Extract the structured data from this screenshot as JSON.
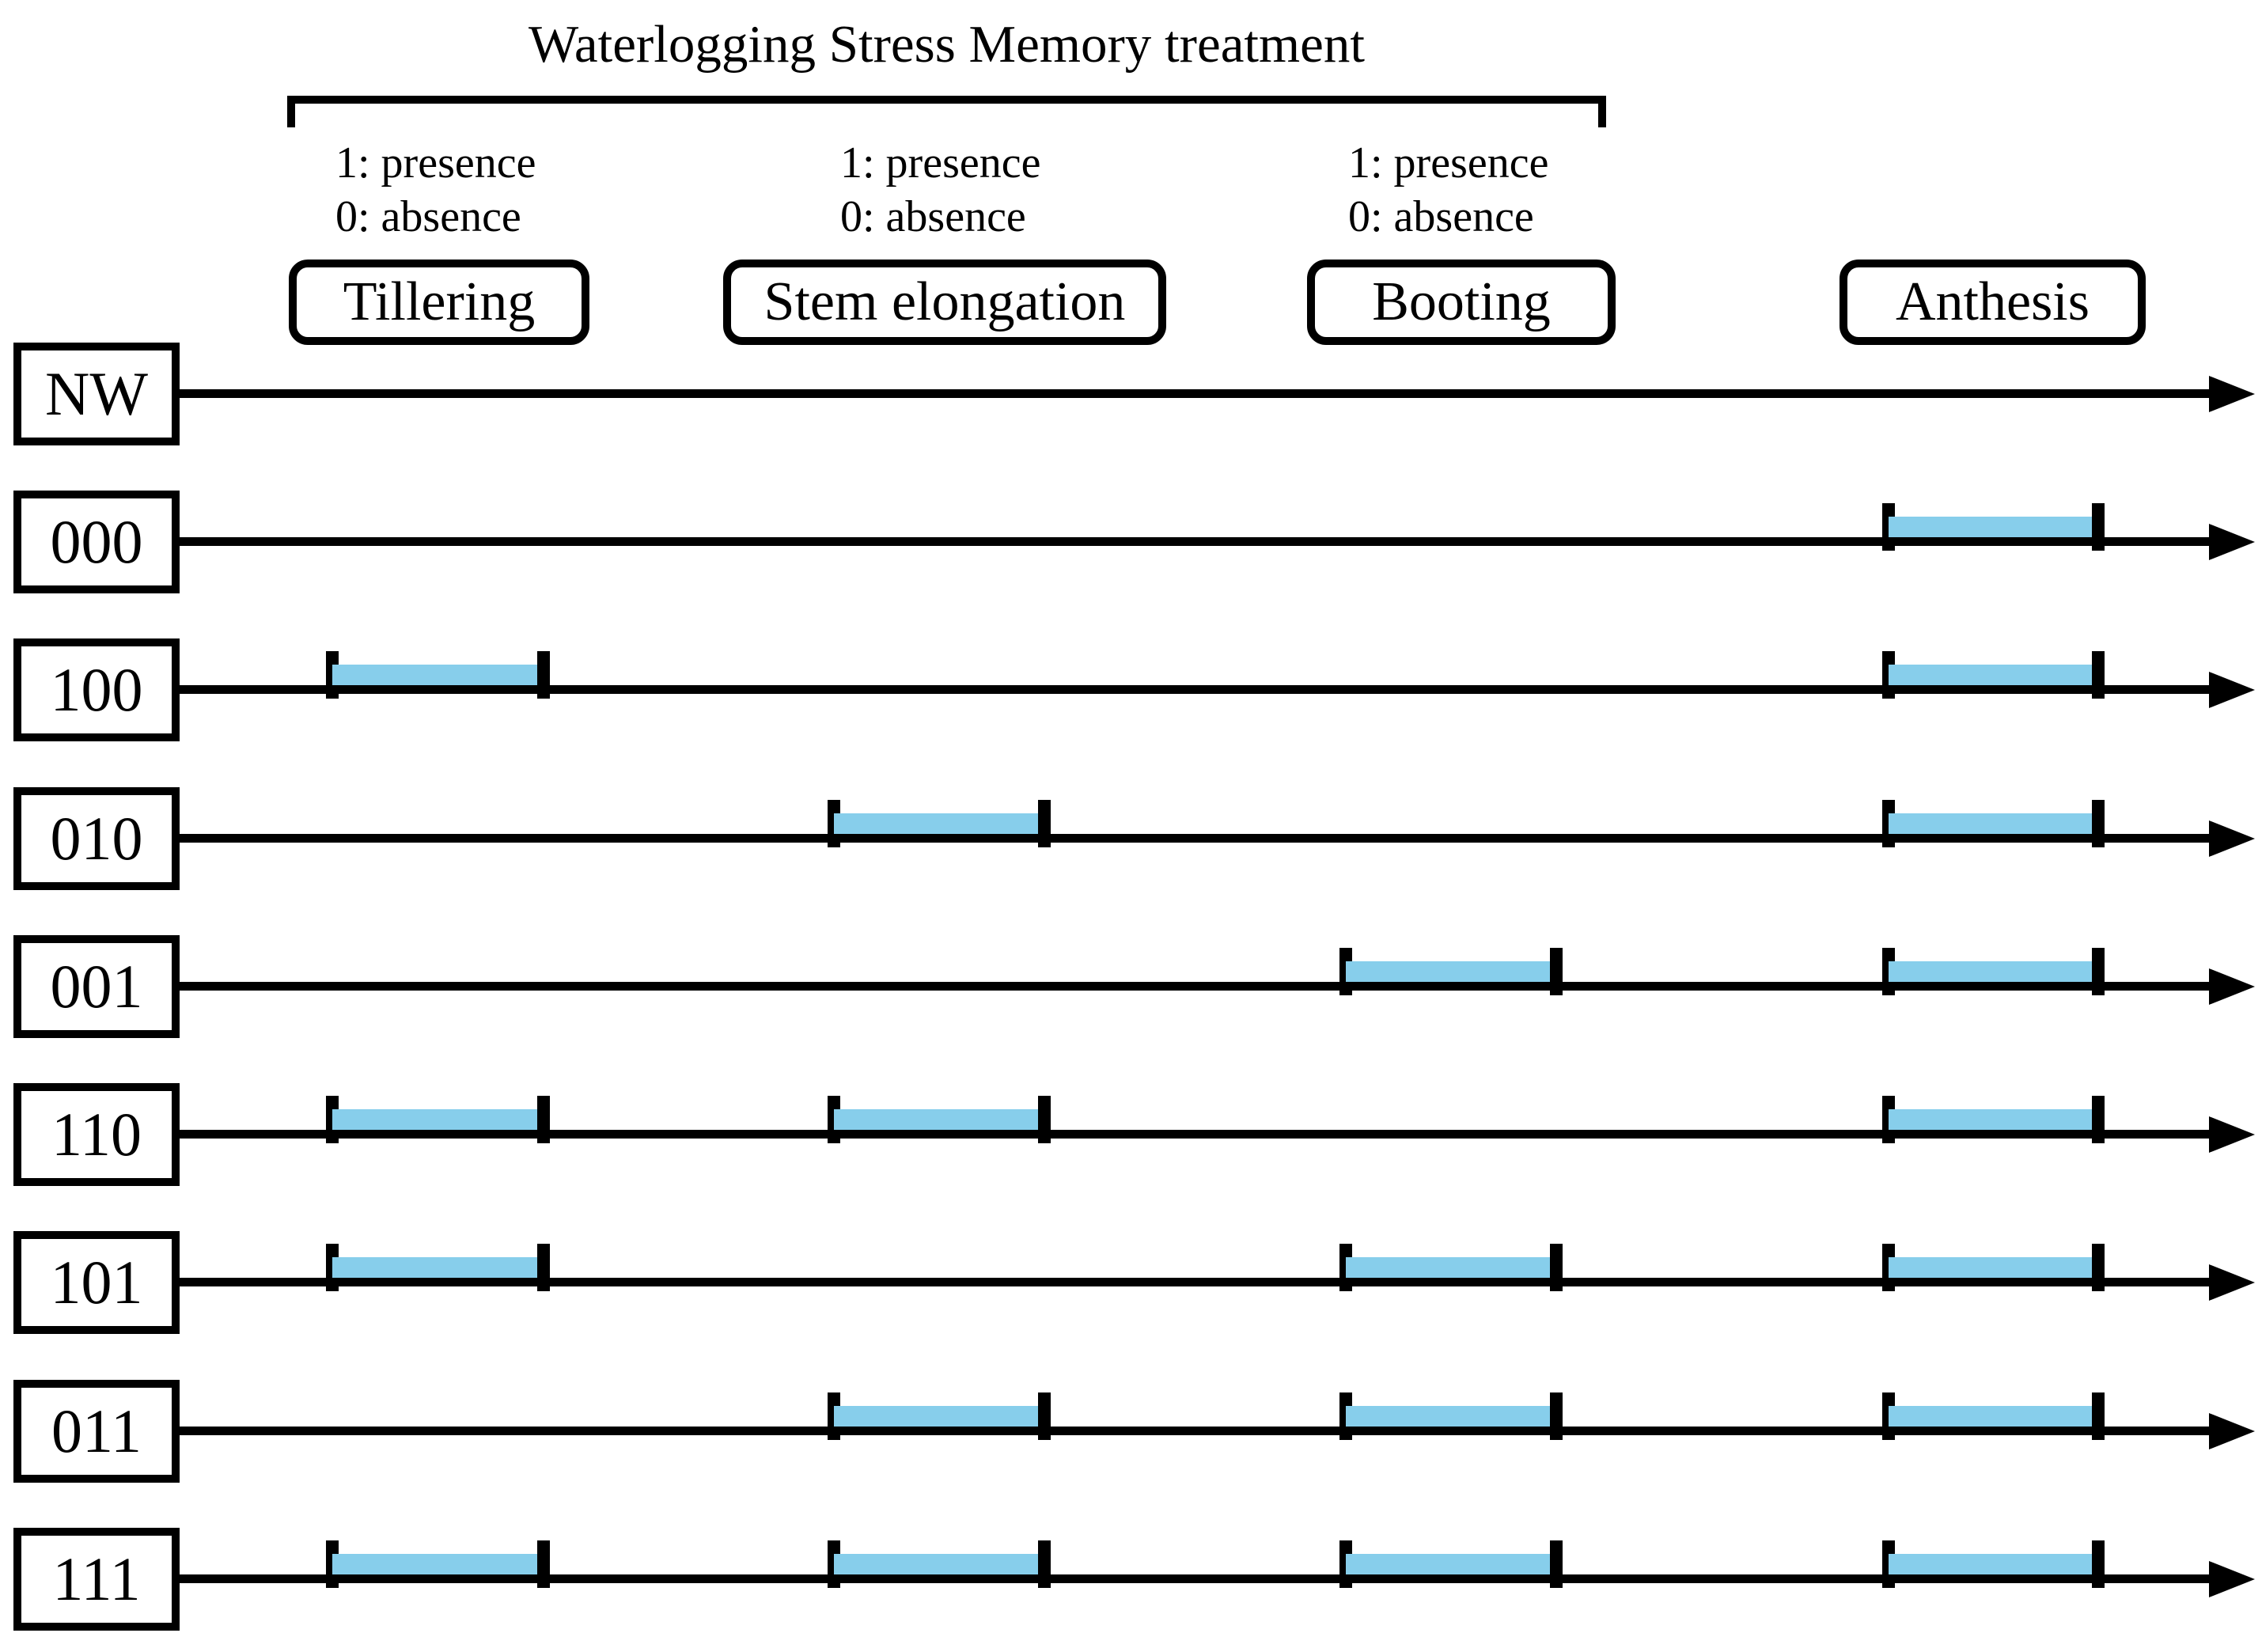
{
  "figure": {
    "title": "Waterlogging Stress Memory treatment",
    "legend_blocks": [
      {
        "line1": "1: presence",
        "line2": "0: absence"
      },
      {
        "line1": "1: presence",
        "line2": "0: absence"
      },
      {
        "line1": "1: presence",
        "line2": "0: absence"
      }
    ],
    "stages": [
      {
        "id": "tillering",
        "label": "Tillering"
      },
      {
        "id": "stem_elongation",
        "label": "Stem elongation"
      },
      {
        "id": "booting",
        "label": "Booting"
      },
      {
        "id": "anthesis",
        "label": "Anthesis"
      }
    ],
    "timeline": {
      "rows": [
        {
          "label": "NW",
          "stress_periods": []
        },
        {
          "label": "000",
          "stress_periods": [
            "anthesis"
          ]
        },
        {
          "label": "100",
          "stress_periods": [
            "tillering",
            "anthesis"
          ]
        },
        {
          "label": "010",
          "stress_periods": [
            "stem_elongation",
            "anthesis"
          ]
        },
        {
          "label": "001",
          "stress_periods": [
            "booting",
            "anthesis"
          ]
        },
        {
          "label": "110",
          "stress_periods": [
            "tillering",
            "stem_elongation",
            "anthesis"
          ]
        },
        {
          "label": "101",
          "stress_periods": [
            "tillering",
            "booting",
            "anthesis"
          ]
        },
        {
          "label": "011",
          "stress_periods": [
            "stem_elongation",
            "booting",
            "anthesis"
          ]
        },
        {
          "label": "111",
          "stress_periods": [
            "tillering",
            "stem_elongation",
            "booting",
            "anthesis"
          ]
        }
      ]
    },
    "colors": {
      "bar_fill": "#87CEEB",
      "line": "#000000"
    }
  }
}
